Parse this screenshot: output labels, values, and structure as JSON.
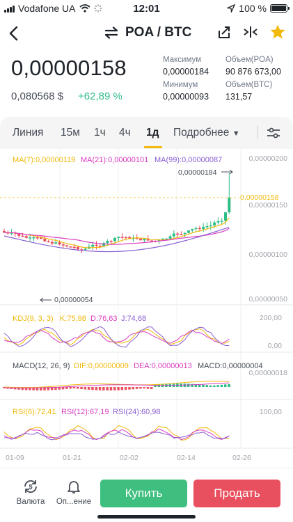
{
  "status_bar": {
    "carrier": "Vodafone UA",
    "time": "12:01",
    "battery": "100 %",
    "battery_level": 1.0
  },
  "header": {
    "pair": "POA / BTC"
  },
  "price": {
    "last": "0,00000158",
    "fiat": "0,080568 $",
    "change": "+62,89 %"
  },
  "stats": {
    "high_label": "Максимум",
    "high": "0,00000184",
    "vol_base_label": "Объем(POA)",
    "vol_base": "90 876 673,00",
    "low_label": "Минимум",
    "low": "0,00000093",
    "vol_quote_label": "Объем(BTC)",
    "vol_quote": "131,57"
  },
  "tabs": [
    "Линия",
    "15м",
    "1ч",
    "4ч",
    "1д",
    "Подробнее"
  ],
  "active_tab": "1д",
  "indicators": {
    "ma7": "MA(7):0,00000119",
    "ma21": "MA(21):0,00000101",
    "ma99": "MA(99):0,00000087",
    "kdj_params": "KDJ(9, 3, 3)",
    "kdj_k": "K:75,98",
    "kdj_d": "D:76,63",
    "kdj_j": "J:74,68",
    "macd_params": "MACD(12, 26, 9)",
    "macd_dif": "DIF:0,00000009",
    "macd_dea": "DEA:0,00000013",
    "macd_val": "MACD:0,00000004",
    "rsi6": "RSI(6):72,41",
    "rsi12": "RSI(12):67,19",
    "rsi24": "RSI(24):60,98"
  },
  "axis": {
    "y_main": [
      "0,00000200",
      "0,00000150",
      "0,00000100",
      "0,00000050"
    ],
    "current_price": "0,00000158",
    "high_marker": "0,00000184",
    "low_marker": "0,00000054",
    "kdj": [
      "200,00",
      "0,00"
    ],
    "macd": [
      "0,00000018"
    ],
    "rsi": [
      "100,00"
    ],
    "dates": [
      "01-09",
      "01-21",
      "02-02",
      "02-14",
      "02-26"
    ]
  },
  "bottom": {
    "currency_label": "Валюта",
    "alerts_label": "Оп...ение",
    "buy": "Купить",
    "sell": "Продать"
  },
  "colors": {
    "up": "#2ebd85",
    "down": "#e9505f",
    "accent": "#f0b90b",
    "ma7": "#f0b90b",
    "ma21": "#d93dc1",
    "ma99": "#8a5fd2"
  }
}
